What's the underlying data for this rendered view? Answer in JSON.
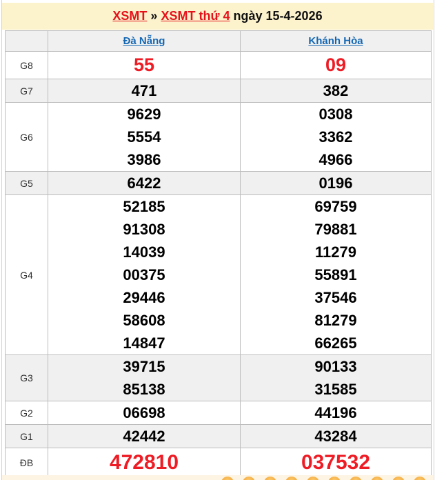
{
  "page": {
    "title": {
      "link1": "XSMT",
      "separator": "»",
      "link2": "XSMT thứ 4",
      "suffix": "ngày 15-4-2026"
    }
  },
  "colors": {
    "banner_bg": "#fcf3cd",
    "result_red": "#ee1c25",
    "link_red": "#e6121b",
    "link_blue": "#1366b2",
    "row_alt_bg": "#f0f0f0",
    "table_border": "#bcbcbc",
    "bottom_strip_bg": "#fdf4e4",
    "ball_orange": "#f5a93c"
  },
  "results_table": {
    "columns": [
      "Đà Nẵng",
      "Khánh Hòa"
    ],
    "rows": [
      {
        "prize": "G8",
        "highlight": true,
        "da_nang": [
          "55"
        ],
        "khanh_hoa": [
          "09"
        ]
      },
      {
        "prize": "G7",
        "highlight": false,
        "da_nang": [
          "471"
        ],
        "khanh_hoa": [
          "382"
        ]
      },
      {
        "prize": "G6",
        "highlight": false,
        "da_nang": [
          "9629",
          "5554",
          "3986"
        ],
        "khanh_hoa": [
          "0308",
          "3362",
          "4966"
        ]
      },
      {
        "prize": "G5",
        "highlight": false,
        "da_nang": [
          "6422"
        ],
        "khanh_hoa": [
          "0196"
        ]
      },
      {
        "prize": "G4",
        "highlight": false,
        "da_nang": [
          "52185",
          "91308",
          "14039",
          "00375",
          "29446",
          "58608",
          "14847"
        ],
        "khanh_hoa": [
          "69759",
          "79881",
          "11279",
          "55891",
          "37546",
          "81279",
          "66265"
        ]
      },
      {
        "prize": "G3",
        "highlight": false,
        "da_nang": [
          "39715",
          "85138"
        ],
        "khanh_hoa": [
          "90133",
          "31585"
        ]
      },
      {
        "prize": "G2",
        "highlight": false,
        "da_nang": [
          "06698"
        ],
        "khanh_hoa": [
          "44196"
        ]
      },
      {
        "prize": "G1",
        "highlight": false,
        "da_nang": [
          "42442"
        ],
        "khanh_hoa": [
          "43284"
        ]
      },
      {
        "prize": "ĐB",
        "highlight": true,
        "da_nang": [
          "472810"
        ],
        "khanh_hoa": [
          "037532"
        ]
      }
    ]
  },
  "bottom_strip": {
    "ball_icon": "lottery-ball-icon",
    "ball_count": 10
  }
}
